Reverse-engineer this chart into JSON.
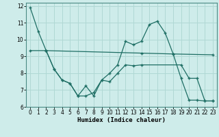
{
  "xlabel": "Humidex (Indice chaleur)",
  "background_color": "#ceecea",
  "grid_color": "#b0d8d4",
  "line_color": "#1e6e64",
  "xlim": [
    -0.5,
    23.5
  ],
  "ylim": [
    6,
    12.2
  ],
  "yticks": [
    6,
    7,
    8,
    9,
    10,
    11,
    12
  ],
  "xticks": [
    0,
    1,
    2,
    3,
    4,
    5,
    6,
    7,
    8,
    9,
    10,
    11,
    12,
    13,
    14,
    15,
    16,
    17,
    18,
    19,
    20,
    21,
    22,
    23
  ],
  "line1_x": [
    0,
    1,
    2,
    3,
    4,
    5,
    6,
    7,
    8,
    9,
    10,
    11,
    12,
    13,
    14,
    15,
    16,
    17,
    18,
    19,
    20,
    21,
    22,
    23
  ],
  "line1_y": [
    11.9,
    10.5,
    9.35,
    8.25,
    7.6,
    7.4,
    6.65,
    6.65,
    6.85,
    7.6,
    8.0,
    8.5,
    9.9,
    9.7,
    9.9,
    10.9,
    11.1,
    10.4,
    9.15,
    7.7,
    6.4,
    6.4,
    6.35,
    6.35
  ],
  "line2_x": [
    2,
    3,
    4,
    5,
    6,
    7,
    8,
    9,
    10,
    11,
    12,
    13,
    14,
    19,
    20,
    21,
    22,
    23
  ],
  "line2_y": [
    9.35,
    8.25,
    7.6,
    7.4,
    6.65,
    7.25,
    6.65,
    7.6,
    7.5,
    8.0,
    8.5,
    8.45,
    8.5,
    8.5,
    7.7,
    7.7,
    6.35,
    6.35
  ],
  "line3_x": [
    0,
    2,
    14,
    18,
    23
  ],
  "line3_y": [
    9.35,
    9.35,
    9.2,
    9.15,
    9.1
  ]
}
